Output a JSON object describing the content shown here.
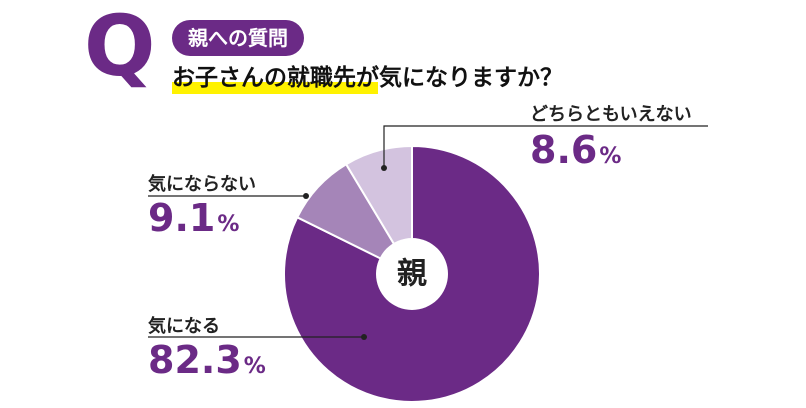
{
  "header": {
    "q_letter": "Q",
    "badge": "親への質問",
    "question": "お子さんの就職先が気になりますか？"
  },
  "center_label": "親",
  "chart_data": {
    "type": "pie",
    "title": "お子さんの就職先が気になりますか？",
    "categories": [
      "気になる",
      "気にならない",
      "どちらともいえない"
    ],
    "values": [
      82.3,
      9.1,
      8.6
    ],
    "value_labels": [
      "82.3",
      "9.1",
      "8.6"
    ],
    "unit": "%",
    "colors": [
      "#6b2a86",
      "#a585b8",
      "#d3c3df"
    ],
    "donut_center_color": "#ffffff"
  }
}
